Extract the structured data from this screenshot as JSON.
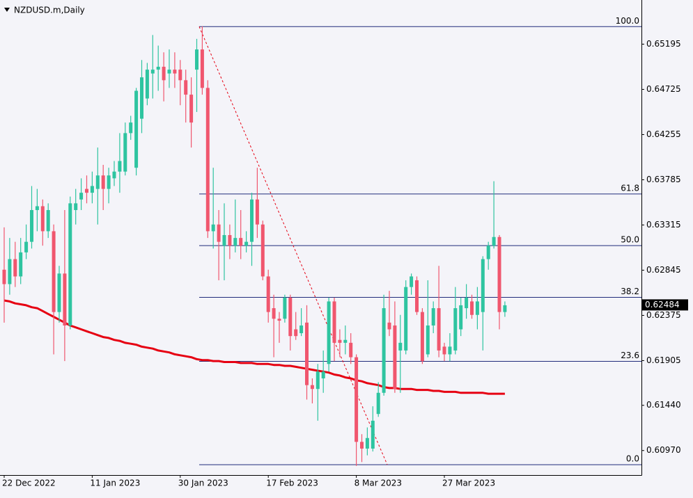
{
  "chart_data": {
    "type": "candlestick",
    "title": "NZDUSD.m,Daily",
    "categories": [
      "22 Dec 2022",
      null,
      null,
      null,
      null,
      null,
      null,
      null,
      null,
      null,
      null,
      null,
      null,
      null,
      null,
      null,
      "11 Jan 2023",
      null,
      null,
      null,
      null,
      null,
      null,
      null,
      null,
      null,
      null,
      null,
      null,
      null,
      null,
      null,
      "30 Jan 2023",
      null,
      null,
      null,
      null,
      null,
      null,
      null,
      null,
      null,
      null,
      null,
      null,
      null,
      null,
      null,
      "17 Feb 2023",
      null,
      null,
      null,
      null,
      null,
      null,
      null,
      null,
      null,
      null,
      null,
      null,
      null,
      null,
      null,
      "8 Mar 2023",
      null,
      null,
      null,
      null,
      null,
      null,
      null,
      null,
      null,
      null,
      null,
      null,
      null,
      null,
      null,
      "27 Mar 2023",
      null,
      null,
      null,
      null,
      null,
      null,
      null,
      null,
      null,
      null,
      null
    ],
    "open": [
      0.6285,
      0.627,
      0.6296,
      0.6278,
      0.6303,
      0.6314,
      0.6347,
      0.6351,
      0.6325,
      0.6325,
      0.6241,
      0.6281,
      0.6227,
      0.6347,
      0.6358,
      0.6369,
      0.6365,
      0.6369,
      0.6383,
      0.6369,
      0.638,
      0.6387,
      0.6387,
      0.6427,
      0.6391,
      0.6442,
      0.6463,
      0.6489,
      0.6493,
      0.6496,
      0.6489,
      0.6493,
      0.6493,
      0.6482,
      0.6467,
      0.6493,
      0.6514,
      0.6474,
      0.6325,
      0.6332,
      0.631,
      0.6321,
      0.631,
      0.6318,
      0.631,
      0.6314,
      0.6358,
      0.6332,
      0.6278,
      0.6245,
      0.6234,
      0.6234,
      0.6256,
      0.6223,
      0.6219,
      0.623,
      0.6165,
      0.6161,
      0.6172,
      0.6187,
      0.6252,
      0.6212,
      0.6209,
      0.6209,
      0.6194,
      0.6106,
      0.6099,
      0.6099,
      0.6135,
      0.6157,
      0.623,
      0.6227,
      0.6201,
      0.6201,
      0.6267,
      0.6274,
      0.6241,
      0.6197,
      0.6227,
      0.6245,
      0.6205,
      0.6197,
      0.6201,
      0.6223,
      0.6245,
      0.6252,
      0.6238,
      0.6241,
      0.6296,
      0.631,
      0.6319,
      0.6241
    ],
    "high": [
      0.6329,
      0.6318,
      0.6314,
      0.6318,
      0.6332,
      0.6372,
      0.6369,
      0.6358,
      0.6354,
      0.6332,
      0.6289,
      0.6347,
      0.6361,
      0.6369,
      0.638,
      0.6383,
      0.6387,
      0.6412,
      0.6394,
      0.6391,
      0.6398,
      0.6427,
      0.6438,
      0.6445,
      0.6474,
      0.6503,
      0.65,
      0.6529,
      0.6518,
      0.6511,
      0.6514,
      0.6511,
      0.6503,
      0.6493,
      0.6485,
      0.6525,
      0.6538,
      0.6482,
      0.6391,
      0.6347,
      0.6354,
      0.6332,
      0.6358,
      0.6347,
      0.6325,
      0.6365,
      0.6391,
      0.6336,
      0.6285,
      0.6259,
      0.6241,
      0.6259,
      0.6259,
      0.6241,
      0.6245,
      0.6248,
      0.6172,
      0.6187,
      0.6201,
      0.6256,
      0.6256,
      0.6223,
      0.6227,
      0.6219,
      0.6197,
      0.6114,
      0.6121,
      0.6143,
      0.6168,
      0.6259,
      0.6263,
      0.6252,
      0.6238,
      0.6274,
      0.6281,
      0.6278,
      0.6245,
      0.6274,
      0.6252,
      0.6289,
      0.6209,
      0.6219,
      0.6267,
      0.6256,
      0.627,
      0.6259,
      0.6267,
      0.6299,
      0.6314,
      0.6377,
      0.6321,
      0.6252
    ],
    "low": [
      0.623,
      0.6259,
      0.6267,
      0.627,
      0.6296,
      0.6307,
      0.6325,
      0.631,
      0.6318,
      0.6197,
      0.623,
      0.619,
      0.6223,
      0.6332,
      0.6347,
      0.6354,
      0.6354,
      0.6332,
      0.6347,
      0.6354,
      0.6372,
      0.6365,
      0.6383,
      0.642,
      0.6383,
      0.6427,
      0.6456,
      0.6463,
      0.6471,
      0.646,
      0.6474,
      0.6474,
      0.6456,
      0.6438,
      0.6412,
      0.6449,
      0.6467,
      0.6318,
      0.6307,
      0.6274,
      0.6274,
      0.6296,
      0.6303,
      0.6296,
      0.6303,
      0.6289,
      0.6318,
      0.6274,
      0.623,
      0.6194,
      0.6209,
      0.623,
      0.6201,
      0.6212,
      0.6216,
      0.615,
      0.6146,
      0.6128,
      0.6157,
      0.6179,
      0.619,
      0.6194,
      0.6197,
      0.6187,
      0.6081,
      0.6085,
      0.6092,
      0.6096,
      0.6132,
      0.6154,
      0.6216,
      0.6157,
      0.6157,
      0.6197,
      0.6259,
      0.6238,
      0.6187,
      0.6194,
      0.6219,
      0.6194,
      0.619,
      0.619,
      0.6197,
      0.6216,
      0.6234,
      0.6234,
      0.6223,
      0.6201,
      0.6285,
      0.6307,
      0.6223,
      0.6236
    ],
    "close": [
      0.627,
      0.6296,
      0.6278,
      0.6303,
      0.6314,
      0.6347,
      0.6351,
      0.6325,
      0.6347,
      0.6241,
      0.6281,
      0.6227,
      0.6354,
      0.6354,
      0.6365,
      0.6365,
      0.6372,
      0.6383,
      0.6369,
      0.6383,
      0.6387,
      0.6398,
      0.6427,
      0.6438,
      0.6471,
      0.6485,
      0.6493,
      0.6493,
      0.6496,
      0.6482,
      0.6493,
      0.6489,
      0.6482,
      0.6467,
      0.6438,
      0.6514,
      0.6474,
      0.6325,
      0.6332,
      0.6314,
      0.6321,
      0.631,
      0.6318,
      0.631,
      0.6314,
      0.6358,
      0.6332,
      0.6278,
      0.6241,
      0.6234,
      0.6232,
      0.6256,
      0.6216,
      0.6216,
      0.6227,
      0.6165,
      0.6161,
      0.6179,
      0.6179,
      0.6252,
      0.6209,
      0.6209,
      0.6212,
      0.6194,
      0.6106,
      0.6099,
      0.611,
      0.6128,
      0.6157,
      0.6245,
      0.6223,
      0.6161,
      0.6209,
      0.6267,
      0.6278,
      0.6241,
      0.619,
      0.6227,
      0.6245,
      0.6201,
      0.6197,
      0.6205,
      0.6245,
      0.6248,
      0.6256,
      0.6238,
      0.6252,
      0.6296,
      0.631,
      0.6319,
      0.6241,
      0.6248
    ],
    "up_color": "#2ec4a0",
    "down_color": "#f0566e",
    "ma": {
      "color": "#e60012",
      "values": [
        0.6253,
        0.6252,
        0.625,
        0.6249,
        0.6248,
        0.6246,
        0.6245,
        0.6242,
        0.6239,
        0.6236,
        0.6233,
        0.623,
        0.6227,
        0.6225,
        0.6223,
        0.6221,
        0.6219,
        0.6217,
        0.6215,
        0.6214,
        0.6212,
        0.6211,
        0.6209,
        0.6208,
        0.6207,
        0.6205,
        0.6204,
        0.6203,
        0.6201,
        0.62,
        0.6199,
        0.6197,
        0.6196,
        0.6195,
        0.6194,
        0.6192,
        0.6191,
        0.6191,
        0.619,
        0.619,
        0.6189,
        0.6189,
        0.6189,
        0.6188,
        0.6188,
        0.6188,
        0.6187,
        0.6187,
        0.6187,
        0.6186,
        0.6186,
        0.6185,
        0.6185,
        0.6184,
        0.6183,
        0.6182,
        0.6181,
        0.618,
        0.6179,
        0.6178,
        0.6176,
        0.6175,
        0.6173,
        0.6172,
        0.617,
        0.6169,
        0.6167,
        0.6166,
        0.6165,
        0.6163,
        0.6162,
        0.6162,
        0.6161,
        0.6161,
        0.6161,
        0.616,
        0.616,
        0.616,
        0.6159,
        0.6159,
        0.6158,
        0.6158,
        0.6158,
        0.6157,
        0.6157,
        0.6157,
        0.6157,
        0.6157,
        0.6156,
        0.6156,
        0.6156,
        0.6156
      ]
    },
    "ylim": [
      0.60715,
      0.65654
    ],
    "yticks": [
      {
        "value": 0.6097,
        "label": "0.60970"
      },
      {
        "value": 0.6144,
        "label": "0.61440"
      },
      0.61905,
      0.62375,
      0.62845,
      0.63315,
      0.63785,
      0.64255,
      0.64725,
      0.65195
    ],
    "last_price": 0.62484,
    "fib": {
      "high": 0.65377,
      "low": 0.60823,
      "color": "#1f2a7a",
      "levels": [
        {
          "value": 100,
          "label": "100.0"
        },
        61.8,
        {
          "value": 50,
          "label": "50.0"
        },
        38.2,
        23.6,
        {
          "value": 0,
          "label": "0.0"
        }
      ]
    }
  }
}
